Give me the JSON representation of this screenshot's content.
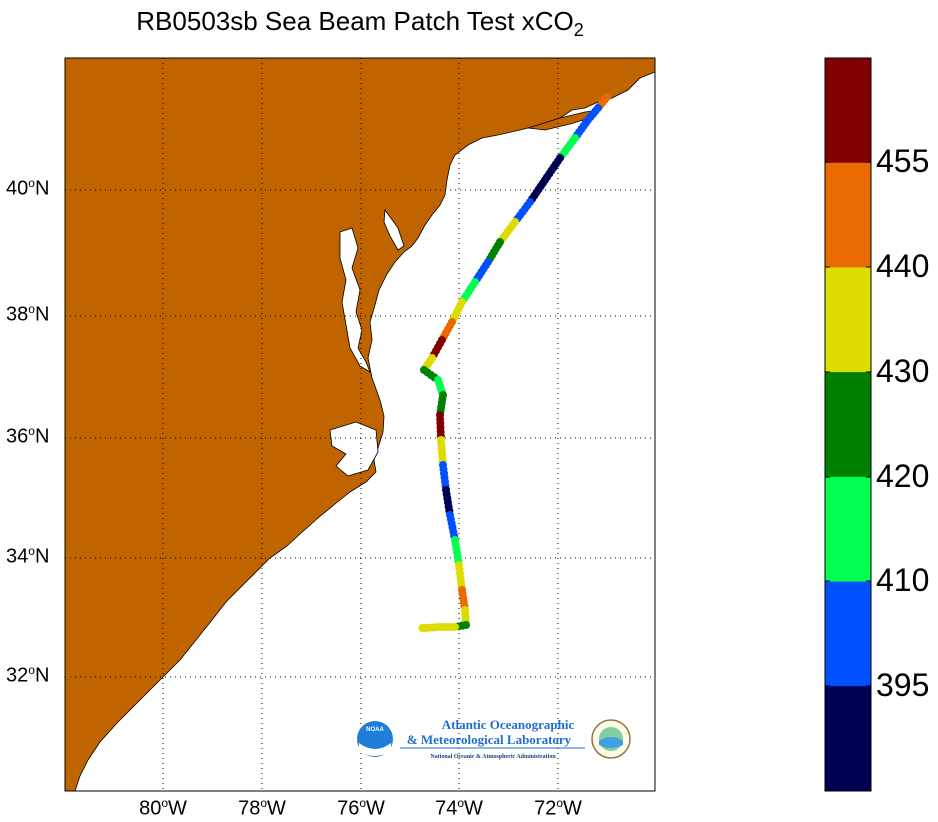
{
  "title": "RB0503sb Sea Beam Patch Test xCO",
  "title_sub": "2",
  "map": {
    "lon_range": [
      -82,
      -70.2
    ],
    "lat_range": [
      30.2,
      42
    ],
    "land_color": "#C06400",
    "water_color": "#FFFFFF",
    "grid": "dotted",
    "lat_ticks": [
      "40",
      "38",
      "36",
      "34",
      "32"
    ],
    "lon_ticks": [
      "80",
      "78",
      "76",
      "74",
      "72"
    ],
    "lat_suffix": "N",
    "lon_suffix": "W",
    "degree_symbol": "o"
  },
  "colorbar": {
    "ticks": [
      "455",
      "440",
      "430",
      "420",
      "410",
      "395"
    ],
    "bands": [
      {
        "color": "#800000"
      },
      {
        "color": "#E86A00"
      },
      {
        "color": "#DCDC00"
      },
      {
        "color": "#008000"
      },
      {
        "color": "#00FF50"
      },
      {
        "color": "#0050FF"
      },
      {
        "color": "#000050"
      }
    ]
  },
  "logo": {
    "line1": "Atlantic Oceanographic",
    "line2": "& Meteorological Laboratory",
    "line3": "National Oceanic & Atmospheric Administration",
    "badge": "NOAA"
  }
}
